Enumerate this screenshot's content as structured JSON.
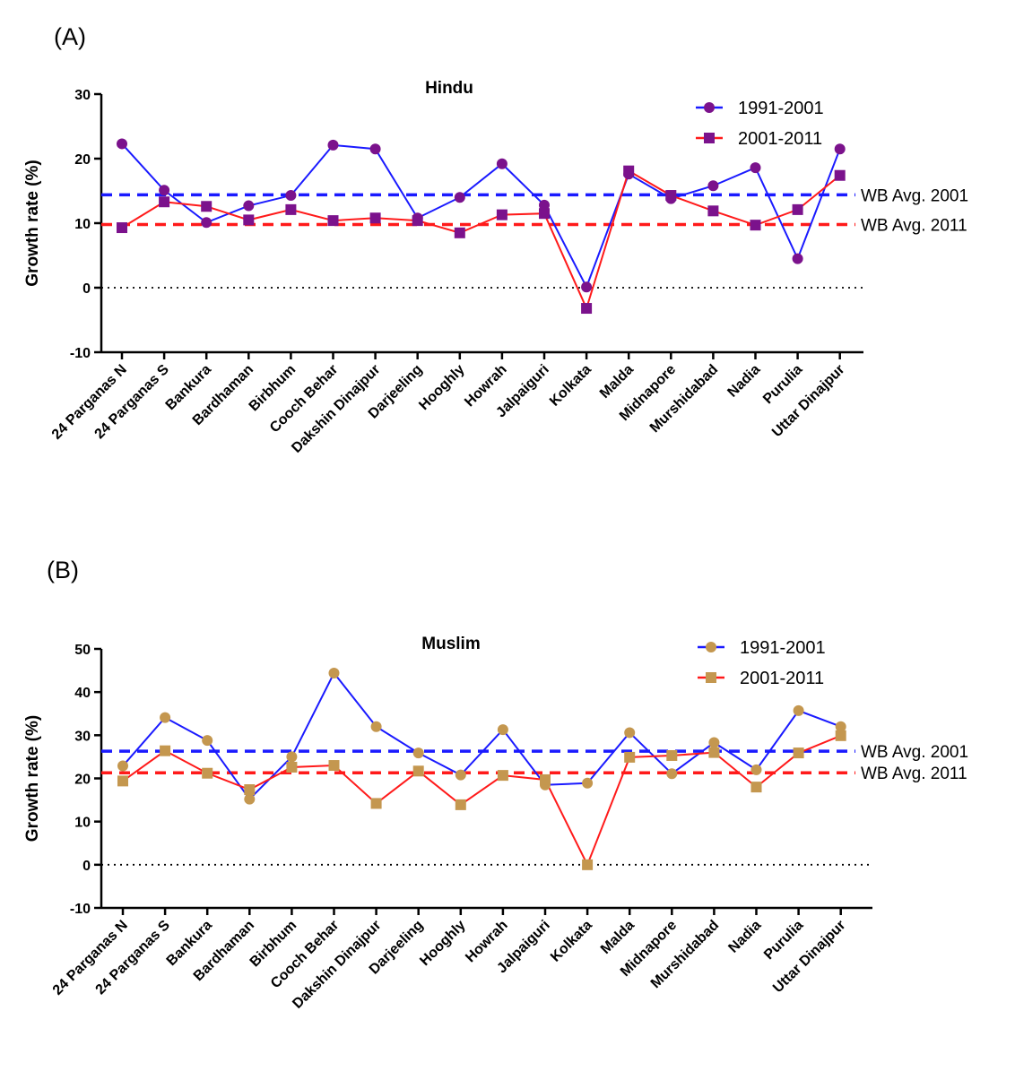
{
  "chart_data": [
    {
      "panel_label": "(A)",
      "type": "line",
      "title": "Hindu",
      "xlabel": "",
      "ylabel": "Growth rate (%)",
      "ylim": [
        -10,
        30
      ],
      "yticks": [
        "-10",
        "0",
        "10",
        "20",
        "30"
      ],
      "grid": false,
      "legend_position": "top-right",
      "categories": [
        "24 Parganas N",
        "24 Parganas S",
        "Bankura",
        "Bardhaman",
        "Birbhum",
        "Cooch Behar",
        "Dakshin Dinajpur",
        "Darjeeling",
        "Hooghly",
        "Howrah",
        "Jalpaiguri",
        "Kolkata",
        "Malda",
        "Midnapore",
        "Murshidabad",
        "Nadia",
        "Purulia",
        "Uttar Dinajpur"
      ],
      "series": [
        {
          "name": "1991-2001",
          "line_color": "#1a1aff",
          "marker": "circle",
          "marker_color": "#7b128c",
          "values": [
            22.3,
            15.1,
            10.1,
            12.7,
            14.3,
            22.1,
            21.5,
            10.8,
            14.0,
            19.2,
            12.8,
            0.1,
            17.6,
            13.8,
            15.8,
            18.6,
            4.5,
            21.5
          ]
        },
        {
          "name": "2001-2011",
          "line_color": "#ff1a1a",
          "marker": "square",
          "marker_color": "#7b128c",
          "values": [
            9.3,
            13.3,
            12.6,
            10.5,
            12.1,
            10.4,
            10.8,
            10.4,
            8.5,
            11.3,
            11.5,
            -3.2,
            18.1,
            14.3,
            11.9,
            9.7,
            12.1,
            17.4
          ]
        }
      ],
      "reference_lines": [
        {
          "label": "WB Avg. 2001",
          "value": 14.4,
          "color": "#1a1aff"
        },
        {
          "label": "WB Avg. 2011",
          "value": 9.8,
          "color": "#ff1a1a"
        }
      ],
      "zero_line": true
    },
    {
      "panel_label": "(B)",
      "type": "line",
      "title": "Muslim",
      "xlabel": "",
      "ylabel": "Growth rate (%)",
      "ylim": [
        -10,
        50
      ],
      "yticks": [
        "-10",
        "0",
        "10",
        "20",
        "30",
        "40",
        "50"
      ],
      "grid": false,
      "legend_position": "top-right",
      "categories": [
        "24 Parganas N",
        "24 Parganas S",
        "Bankura",
        "Bardhaman",
        "Birbhum",
        "Cooch Behar",
        "Dakshin Dinajpur",
        "Darjeeling",
        "Hooghly",
        "Howrah",
        "Jalpaiguri",
        "Kolkata",
        "Malda",
        "Midnapore",
        "Murshidabad",
        "Nadia",
        "Purulia",
        "Uttar Dinajpur"
      ],
      "series": [
        {
          "name": "1991-2001",
          "line_color": "#1a1aff",
          "marker": "circle",
          "marker_color": "#c4974f",
          "values": [
            22.9,
            34.1,
            28.8,
            15.2,
            25.0,
            44.4,
            32.0,
            25.9,
            20.8,
            31.3,
            18.5,
            18.9,
            30.6,
            21.1,
            28.3,
            22.0,
            35.7,
            32.0
          ]
        },
        {
          "name": "2001-2011",
          "line_color": "#ff1a1a",
          "marker": "square",
          "marker_color": "#c4974f",
          "values": [
            19.4,
            26.4,
            21.2,
            17.4,
            22.6,
            23.0,
            14.2,
            21.7,
            13.9,
            20.7,
            19.7,
            0.0,
            24.9,
            25.3,
            26.0,
            18.0,
            25.9,
            29.9
          ]
        }
      ],
      "reference_lines": [
        {
          "label": "WB Avg. 2001",
          "value": 26.3,
          "color": "#1a1aff"
        },
        {
          "label": "WB Avg. 2011",
          "value": 21.3,
          "color": "#ff1a1a"
        }
      ],
      "zero_line": true
    }
  ]
}
